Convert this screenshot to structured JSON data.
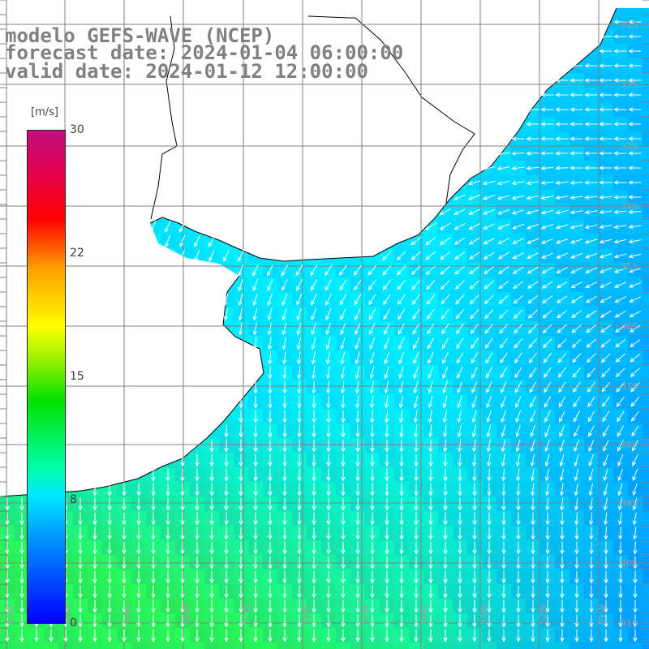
{
  "title": {
    "line1": "modelo GEFS-WAVE (NCEP)",
    "line2": "forecast date: 2024-01-04 06:00:00",
    "line3": "valid date: 2024-01-12 12:00:00"
  },
  "colorbar": {
    "unit": "[m/s]",
    "ticks": [
      "30",
      "22",
      "15",
      "8",
      "0"
    ],
    "colors": [
      "#0000ff",
      "#00e8ff",
      "#00e000",
      "#ffff00",
      "#ff0000",
      "#c0107a"
    ]
  },
  "map": {
    "latitude_labels": [
      "31S",
      "32S",
      "33S",
      "34S",
      "35S",
      "36S",
      "37S",
      "38S",
      "39S",
      "40S",
      "41S"
    ],
    "longitude_labels": [
      "61W",
      "60W",
      "59W",
      "58W",
      "57W",
      "56W",
      "55W",
      "54W",
      "53W",
      "52W",
      "51W"
    ],
    "colors": {
      "land": "#ffffff",
      "coast": "#000000",
      "grid": "#808080",
      "arrows": "#ffffff"
    }
  }
}
